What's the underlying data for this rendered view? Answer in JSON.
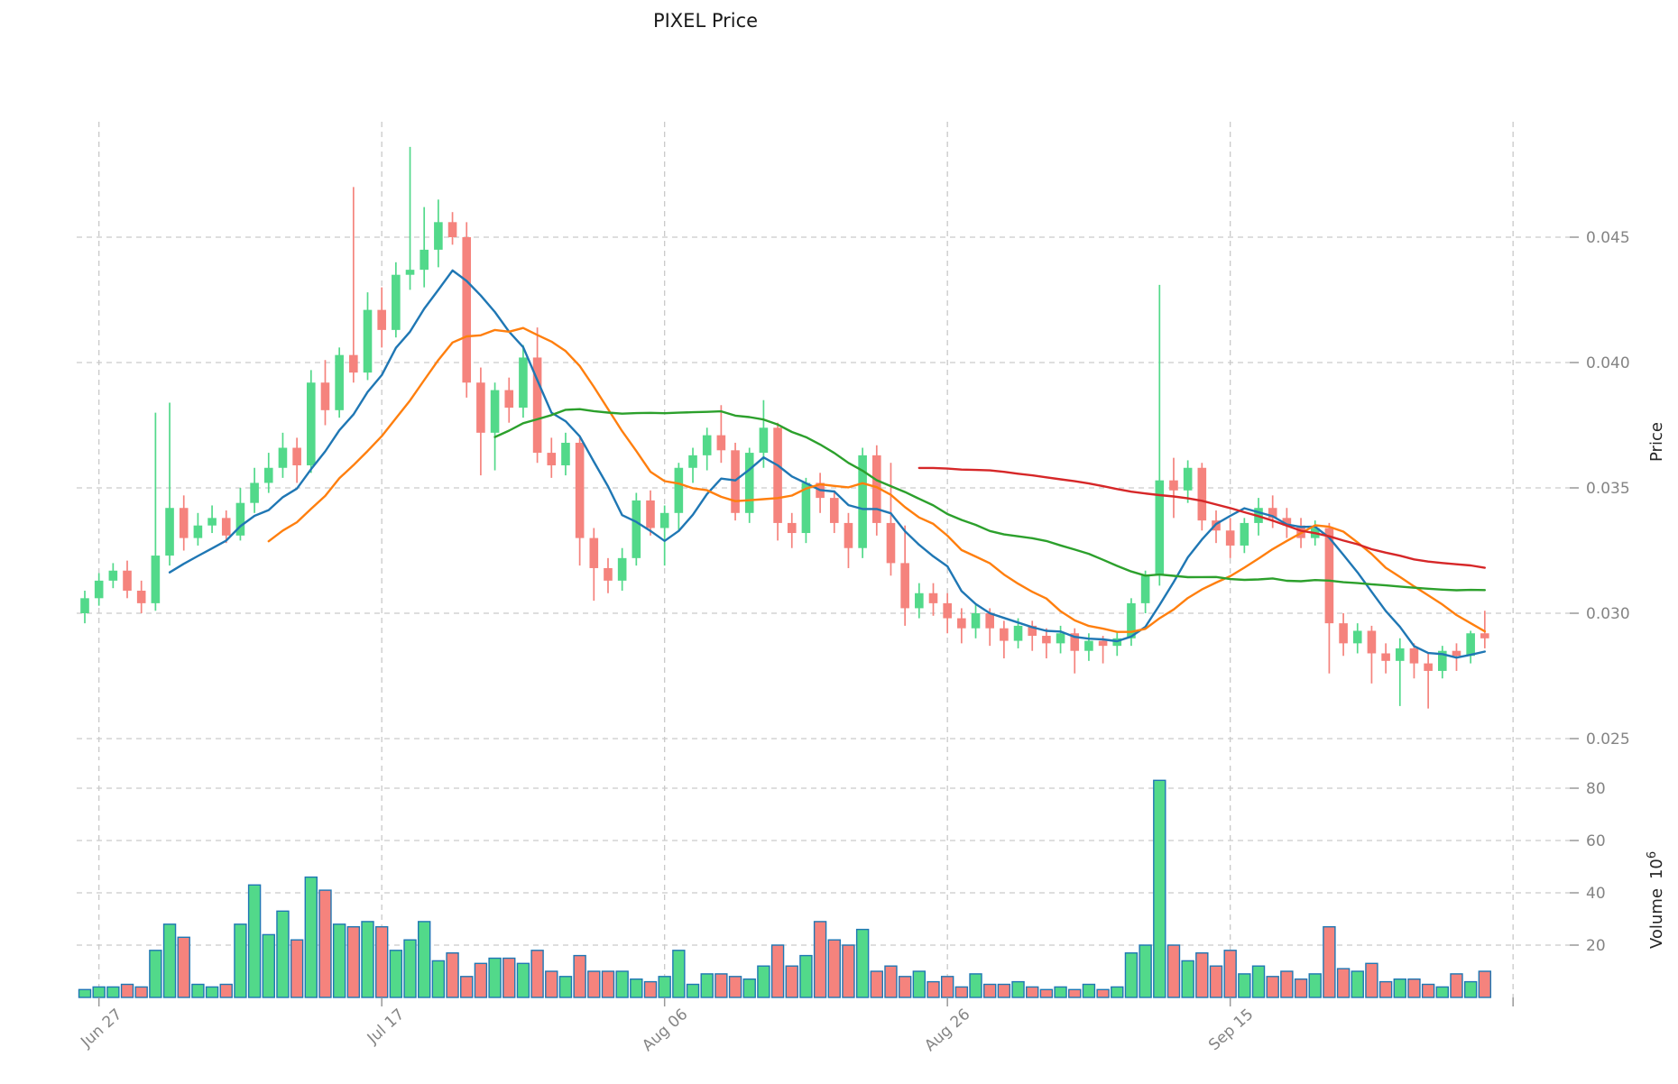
{
  "title": "PIXEL Price",
  "axis": {
    "price_axis_label": "Price",
    "volume_axis_label": "Volume",
    "volume_scale_base": "10",
    "volume_scale_exp": "6",
    "price_ticks": [
      {
        "label": "0.045",
        "value": 0.045
      },
      {
        "label": "0.040",
        "value": 0.04
      },
      {
        "label": "0.035",
        "value": 0.035
      },
      {
        "label": "0.030",
        "value": 0.03
      },
      {
        "label": "0.025",
        "value": 0.025
      }
    ],
    "volume_ticks": [
      {
        "label": "80",
        "value": 80
      },
      {
        "label": "60",
        "value": 60
      },
      {
        "label": "40",
        "value": 40
      },
      {
        "label": "20",
        "value": 20
      }
    ],
    "x_ticks": [
      {
        "label": "Jun 27",
        "index": 1
      },
      {
        "label": "Jul 17",
        "index": 21
      },
      {
        "label": "Aug 06",
        "index": 41
      },
      {
        "label": "Aug 26",
        "index": 61
      },
      {
        "label": "Sep 15",
        "index": 81
      }
    ],
    "unlabeled_grid_index": 101
  },
  "chart_data": {
    "type": "candlestick",
    "subpanel": "volume-bar",
    "grid": "dashed",
    "price_ylim": [
      0.0242,
      0.0498
    ],
    "volume_ylim_millions": [
      0,
      92
    ],
    "colors": {
      "up": "#52d98a",
      "down": "#f5837d",
      "volume_edge": "#1f77b4",
      "grid": "#c9c9c9",
      "tick_text": "#848484"
    },
    "moving_averages": [
      {
        "name": "SMA7",
        "window": 7,
        "color": "#1f77b4"
      },
      {
        "name": "SMA14",
        "window": 14,
        "color": "#ff7f0e"
      },
      {
        "name": "SMA30",
        "window": 30,
        "color": "#2ca02c"
      },
      {
        "name": "SMA60",
        "window": 60,
        "color": "#d62728"
      }
    ],
    "dates": [
      "Jun 26",
      "Jun 27",
      "Jun 28",
      "Jun 29",
      "Jun 30",
      "Jul 1",
      "Jul 2",
      "Jul 3",
      "Jul 4",
      "Jul 5",
      "Jul 6",
      "Jul 7",
      "Jul 8",
      "Jul 9",
      "Jul 10",
      "Jul 11",
      "Jul 12",
      "Jul 13",
      "Jul 14",
      "Jul 15",
      "Jul 16",
      "Jul 17",
      "Jul 18",
      "Jul 19",
      "Jul 20",
      "Jul 21",
      "Jul 22",
      "Jul 23",
      "Jul 24",
      "Jul 25",
      "Jul 26",
      "Jul 27",
      "Jul 28",
      "Jul 29",
      "Jul 30",
      "Jul 31",
      "Aug 1",
      "Aug 2",
      "Aug 3",
      "Aug 4",
      "Aug 5",
      "Aug 6",
      "Aug 7",
      "Aug 8",
      "Aug 9",
      "Aug 10",
      "Aug 11",
      "Aug 12",
      "Aug 13",
      "Aug 14",
      "Aug 15",
      "Aug 16",
      "Aug 17",
      "Aug 18",
      "Aug 19",
      "Aug 20",
      "Aug 21",
      "Aug 22",
      "Aug 23",
      "Aug 24",
      "Aug 25",
      "Aug 26",
      "Aug 27",
      "Aug 28",
      "Aug 29",
      "Aug 30",
      "Aug 31",
      "Sep 1",
      "Sep 2",
      "Sep 3",
      "Sep 4",
      "Sep 5",
      "Sep 6",
      "Sep 7",
      "Sep 8",
      "Sep 9",
      "Sep 10",
      "Sep 11",
      "Sep 12",
      "Sep 13",
      "Sep 14",
      "Sep 15",
      "Sep 16",
      "Sep 17",
      "Sep 18",
      "Sep 19",
      "Sep 20",
      "Sep 21",
      "Sep 22",
      "Sep 23",
      "Sep 24",
      "Sep 25",
      "Sep 26",
      "Sep 27",
      "Sep 28",
      "Sep 29",
      "Sep 30",
      "Oct 1",
      "Oct 2",
      "Oct 3"
    ],
    "open": [
      0.03,
      0.0306,
      0.0313,
      0.0317,
      0.0309,
      0.0304,
      0.0323,
      0.0342,
      0.033,
      0.0335,
      0.0338,
      0.0331,
      0.0344,
      0.0352,
      0.0358,
      0.0366,
      0.0359,
      0.0392,
      0.0381,
      0.0403,
      0.0396,
      0.0421,
      0.0413,
      0.0435,
      0.0437,
      0.0445,
      0.0456,
      0.045,
      0.0392,
      0.0372,
      0.0389,
      0.0382,
      0.0402,
      0.0364,
      0.0359,
      0.0368,
      0.033,
      0.0318,
      0.0313,
      0.0322,
      0.0345,
      0.0334,
      0.034,
      0.0358,
      0.0363,
      0.0371,
      0.0365,
      0.034,
      0.0364,
      0.0374,
      0.0336,
      0.0332,
      0.0352,
      0.0346,
      0.0336,
      0.0326,
      0.0363,
      0.0336,
      0.032,
      0.0302,
      0.0308,
      0.0304,
      0.0298,
      0.0294,
      0.03,
      0.0294,
      0.0289,
      0.0295,
      0.0291,
      0.0288,
      0.0292,
      0.0285,
      0.0289,
      0.0287,
      0.029,
      0.0304,
      0.0315,
      0.0353,
      0.0349,
      0.0358,
      0.0337,
      0.0333,
      0.0327,
      0.0336,
      0.0342,
      0.0338,
      0.0335,
      0.033,
      0.0334,
      0.0296,
      0.0288,
      0.0293,
      0.0284,
      0.0281,
      0.0286,
      0.028,
      0.0277,
      0.0285,
      0.0283,
      0.0292
    ],
    "high": [
      0.0309,
      0.0316,
      0.032,
      0.0321,
      0.0313,
      0.038,
      0.0384,
      0.0347,
      0.034,
      0.0343,
      0.0341,
      0.035,
      0.0358,
      0.0364,
      0.0372,
      0.037,
      0.0397,
      0.0401,
      0.0406,
      0.047,
      0.0428,
      0.043,
      0.044,
      0.0486,
      0.0462,
      0.0465,
      0.046,
      0.0456,
      0.0398,
      0.0392,
      0.0394,
      0.0407,
      0.0414,
      0.037,
      0.0372,
      0.037,
      0.0334,
      0.0322,
      0.0326,
      0.0348,
      0.0349,
      0.0343,
      0.036,
      0.0366,
      0.0374,
      0.0383,
      0.0368,
      0.0366,
      0.0385,
      0.0376,
      0.034,
      0.0354,
      0.0356,
      0.0349,
      0.034,
      0.0366,
      0.0367,
      0.036,
      0.0335,
      0.0312,
      0.0312,
      0.0308,
      0.0302,
      0.0304,
      0.0302,
      0.0297,
      0.0298,
      0.0297,
      0.0294,
      0.0295,
      0.0294,
      0.0292,
      0.0291,
      0.0293,
      0.0306,
      0.0317,
      0.0431,
      0.0362,
      0.0361,
      0.036,
      0.0341,
      0.0338,
      0.0338,
      0.0346,
      0.0347,
      0.0342,
      0.0338,
      0.0337,
      0.0336,
      0.03,
      0.0296,
      0.0295,
      0.0288,
      0.029,
      0.0288,
      0.0284,
      0.0287,
      0.0288,
      0.0293,
      0.0301
    ],
    "low": [
      0.0296,
      0.0303,
      0.031,
      0.0306,
      0.03,
      0.0301,
      0.0319,
      0.0325,
      0.0327,
      0.0332,
      0.0328,
      0.0329,
      0.034,
      0.0348,
      0.0354,
      0.0352,
      0.0356,
      0.0375,
      0.0378,
      0.0392,
      0.0393,
      0.0406,
      0.041,
      0.0429,
      0.043,
      0.0438,
      0.0447,
      0.0386,
      0.0355,
      0.0357,
      0.0376,
      0.0378,
      0.036,
      0.0354,
      0.0355,
      0.0319,
      0.0305,
      0.0308,
      0.0309,
      0.0319,
      0.0331,
      0.0319,
      0.0333,
      0.0352,
      0.0357,
      0.036,
      0.0337,
      0.0336,
      0.0358,
      0.0329,
      0.0326,
      0.0328,
      0.034,
      0.0332,
      0.0318,
      0.0322,
      0.0331,
      0.0315,
      0.0295,
      0.0298,
      0.0299,
      0.0292,
      0.0288,
      0.029,
      0.0287,
      0.0282,
      0.0286,
      0.0285,
      0.0282,
      0.0284,
      0.0276,
      0.0281,
      0.028,
      0.0283,
      0.0287,
      0.03,
      0.0311,
      0.0338,
      0.0344,
      0.0333,
      0.0328,
      0.0322,
      0.0324,
      0.0331,
      0.0334,
      0.033,
      0.0326,
      0.0327,
      0.0276,
      0.0283,
      0.0284,
      0.0272,
      0.0276,
      0.0263,
      0.0274,
      0.0262,
      0.0274,
      0.0277,
      0.028,
      0.0286
    ],
    "close": [
      0.0306,
      0.0313,
      0.0317,
      0.0309,
      0.0304,
      0.0323,
      0.0342,
      0.033,
      0.0335,
      0.0338,
      0.0331,
      0.0344,
      0.0352,
      0.0358,
      0.0366,
      0.0359,
      0.0392,
      0.0381,
      0.0403,
      0.0396,
      0.0421,
      0.0413,
      0.0435,
      0.0437,
      0.0445,
      0.0456,
      0.045,
      0.0392,
      0.0372,
      0.0389,
      0.0382,
      0.0402,
      0.0364,
      0.0359,
      0.0368,
      0.033,
      0.0318,
      0.0313,
      0.0322,
      0.0345,
      0.0334,
      0.034,
      0.0358,
      0.0363,
      0.0371,
      0.0365,
      0.034,
      0.0364,
      0.0374,
      0.0336,
      0.0332,
      0.0352,
      0.0346,
      0.0336,
      0.0326,
      0.0363,
      0.0336,
      0.032,
      0.0302,
      0.0308,
      0.0304,
      0.0298,
      0.0294,
      0.03,
      0.0294,
      0.0289,
      0.0295,
      0.0291,
      0.0288,
      0.0292,
      0.0285,
      0.0289,
      0.0287,
      0.029,
      0.0304,
      0.0315,
      0.0353,
      0.0349,
      0.0358,
      0.0337,
      0.0333,
      0.0327,
      0.0336,
      0.0342,
      0.0338,
      0.0335,
      0.033,
      0.0334,
      0.0296,
      0.0288,
      0.0293,
      0.0284,
      0.0281,
      0.0286,
      0.028,
      0.0277,
      0.0285,
      0.0283,
      0.0292,
      0.029
    ],
    "volume_millions": [
      3,
      4,
      4,
      5,
      4,
      18,
      28,
      23,
      5,
      4,
      5,
      28,
      43,
      24,
      33,
      22,
      46,
      41,
      28,
      27,
      29,
      27,
      18,
      22,
      29,
      14,
      17,
      8,
      13,
      15,
      15,
      13,
      18,
      10,
      8,
      16,
      10,
      10,
      10,
      7,
      6,
      8,
      18,
      5,
      9,
      9,
      8,
      7,
      12,
      20,
      12,
      16,
      29,
      22,
      20,
      26,
      10,
      12,
      8,
      10,
      6,
      8,
      4,
      9,
      5,
      5,
      6,
      4,
      3,
      4,
      3,
      5,
      3,
      4,
      17,
      20,
      83,
      20,
      14,
      17,
      12,
      18,
      9,
      12,
      8,
      10,
      7,
      9,
      27,
      11,
      10,
      13,
      6,
      7,
      7,
      5,
      4,
      9,
      6,
      10
    ]
  }
}
